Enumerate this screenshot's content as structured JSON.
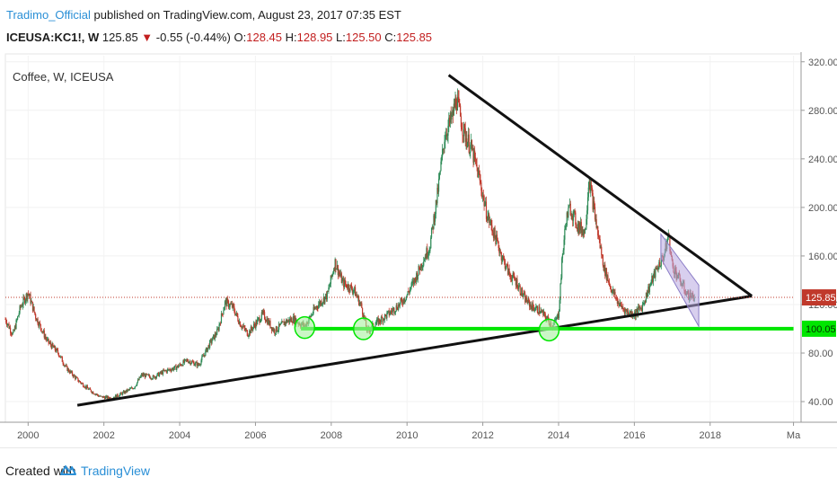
{
  "header": {
    "author": "Tradimo_Official",
    "published_text": " published on TradingView.com, August 23, 2017 07:35 EST",
    "symbol": "ICEUSA:KC1!, W",
    "last": "125.85",
    "down_arrow": "▼",
    "change": "-0.55 (-0.44%)",
    "o_label": "O:",
    "o_value": "128.45",
    "h_label": "H:",
    "h_value": "128.95",
    "l_label": "L:",
    "l_value": "125.50",
    "c_label": "C:",
    "c_value": "125.85"
  },
  "chart_data": {
    "type": "candlestick",
    "title": "Coffee, W, ICEUSA",
    "x_tick_labels": [
      "2000",
      "2002",
      "2004",
      "2006",
      "2008",
      "2010",
      "2012",
      "2014",
      "2016",
      "2018",
      "Ma"
    ],
    "x_ticks": [
      2000,
      2002,
      2004,
      2006,
      2008,
      2010,
      2012,
      2014,
      2016,
      2018,
      2020.2
    ],
    "y_ticks": [
      40,
      80,
      120,
      160,
      200,
      240,
      280,
      320
    ],
    "y_tick_labels": [
      "40.00",
      "80.00",
      "120.00",
      "160.00",
      "200.00",
      "240.00",
      "280.00",
      "320.00"
    ],
    "xlim": [
      1999.4,
      2020.4
    ],
    "ylim": [
      23,
      325
    ],
    "price_series": {
      "name": "KC1! weekly close",
      "x": [
        1999.4,
        1999.6,
        1999.8,
        2000.0,
        2000.2,
        2000.5,
        2000.8,
        2001.0,
        2001.3,
        2001.6,
        2001.9,
        2002.2,
        2002.5,
        2002.8,
        2003.0,
        2003.3,
        2003.6,
        2003.9,
        2004.2,
        2004.5,
        2004.8,
        2005.0,
        2005.2,
        2005.4,
        2005.6,
        2005.8,
        2006.0,
        2006.2,
        2006.5,
        2006.8,
        2007.0,
        2007.3,
        2007.6,
        2007.9,
        2008.1,
        2008.3,
        2008.6,
        2008.8,
        2008.95,
        2009.2,
        2009.5,
        2009.8,
        2010.0,
        2010.2,
        2010.4,
        2010.6,
        2010.8,
        2011.0,
        2011.2,
        2011.3,
        2011.5,
        2011.7,
        2011.9,
        2012.1,
        2012.3,
        2012.5,
        2012.7,
        2012.9,
        2013.1,
        2013.3,
        2013.5,
        2013.7,
        2013.85,
        2014.0,
        2014.1,
        2014.2,
        2014.3,
        2014.5,
        2014.7,
        2014.8,
        2015.0,
        2015.2,
        2015.4,
        2015.6,
        2015.8,
        2016.0,
        2016.2,
        2016.4,
        2016.6,
        2016.8,
        2016.9,
        2017.0,
        2017.2,
        2017.4,
        2017.6
      ],
      "y": [
        108,
        95,
        118,
        130,
        110,
        90,
        80,
        68,
        58,
        50,
        44,
        43,
        47,
        52,
        62,
        60,
        65,
        68,
        74,
        70,
        88,
        98,
        122,
        118,
        104,
        96,
        104,
        112,
        98,
        106,
        108,
        102,
        118,
        128,
        155,
        138,
        132,
        118,
        98,
        105,
        112,
        120,
        128,
        140,
        155,
        168,
        210,
        260,
        275,
        290,
        262,
        248,
        225,
        195,
        178,
        160,
        145,
        138,
        125,
        118,
        115,
        108,
        102,
        112,
        160,
        190,
        200,
        185,
        180,
        225,
        185,
        150,
        132,
        120,
        114,
        112,
        118,
        135,
        150,
        162,
        178,
        152,
        140,
        128,
        126
      ]
    },
    "lines": [
      {
        "name": "long-term support",
        "x": [
          2001.3,
          2019.1
        ],
        "y": [
          37,
          127
        ]
      },
      {
        "name": "resistance",
        "x": [
          2011.1,
          2019.1
        ],
        "y": [
          309,
          127
        ]
      },
      {
        "name": "support level 100.05",
        "x": [
          2007.2,
          2020.2
        ],
        "y": [
          100.05,
          100.05
        ]
      },
      {
        "name": "last price 125.85",
        "x": [
          1999.4,
          2020.2
        ],
        "y": [
          125.85,
          125.85
        ]
      }
    ],
    "channel": {
      "upper": {
        "x": [
          2016.7,
          2017.7
        ],
        "y": [
          178,
          136
        ]
      },
      "lower": {
        "x": [
          2016.7,
          2017.7
        ],
        "y": [
          158,
          102
        ]
      }
    },
    "circles": [
      {
        "x": 2007.3,
        "y": 101
      },
      {
        "x": 2008.85,
        "y": 100
      },
      {
        "x": 2013.75,
        "y": 99
      }
    ],
    "price_labels": [
      {
        "text": "125.85",
        "y": 125.85,
        "color": "#c0392b"
      },
      {
        "text": "100.05",
        "y": 100.05,
        "color": "#00e600"
      }
    ],
    "colors": {
      "up": "#2e8b57",
      "down": "#c0392b",
      "support": "#00e600",
      "trendline": "#111111",
      "channel_fill": "#b8a8e0",
      "channel_stroke": "#8a7cc6"
    }
  },
  "footer": {
    "created_with": "Created with",
    "brand": "TradingView"
  }
}
